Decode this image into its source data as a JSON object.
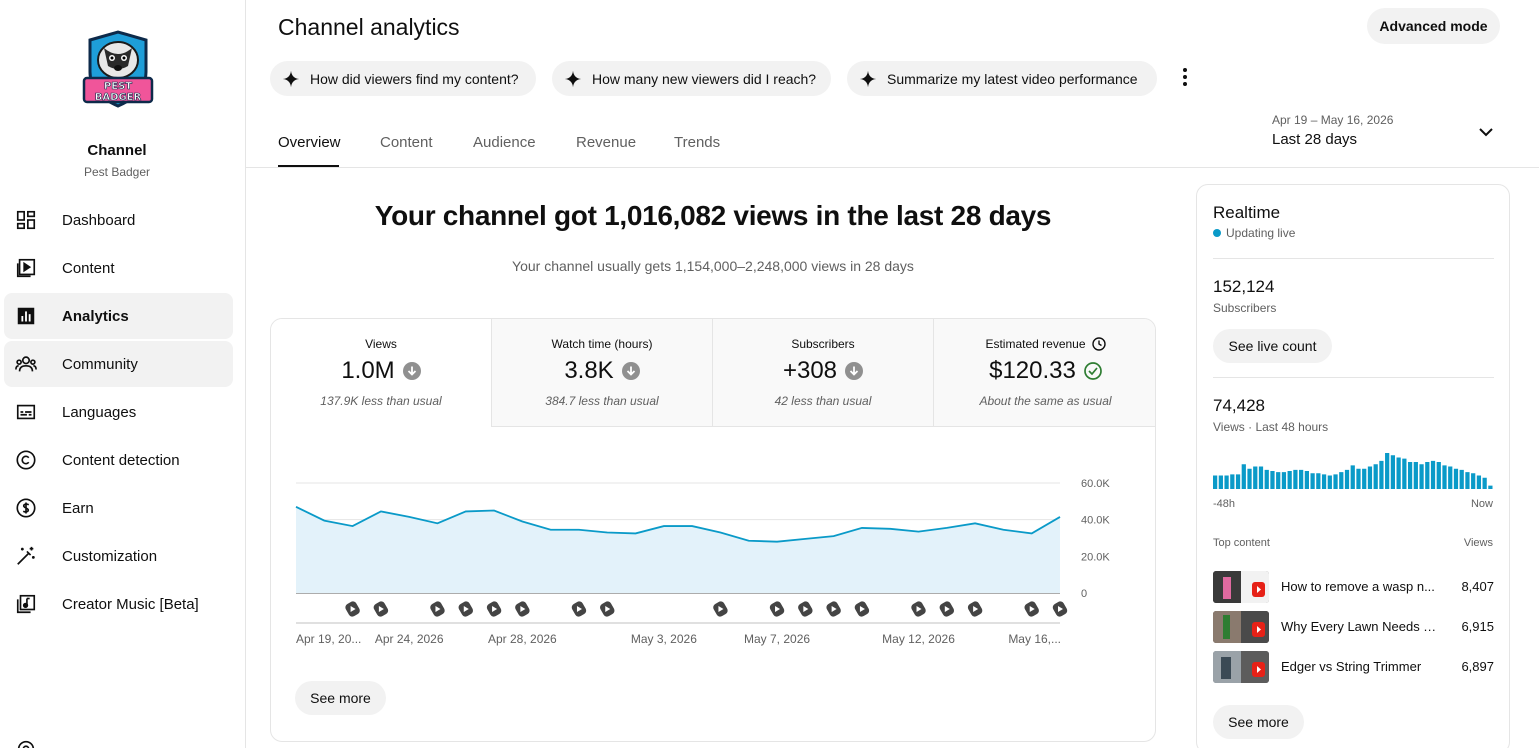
{
  "sidebar": {
    "channel_title": "Channel",
    "channel_name": "Pest Badger",
    "logo_text": "PEST BADGER",
    "items": [
      {
        "label": "Dashboard",
        "icon": "dashboard-icon"
      },
      {
        "label": "Content",
        "icon": "content-icon"
      },
      {
        "label": "Analytics",
        "icon": "analytics-icon"
      },
      {
        "label": "Community",
        "icon": "community-icon"
      },
      {
        "label": "Languages",
        "icon": "languages-icon"
      },
      {
        "label": "Content detection",
        "icon": "copyright-icon"
      },
      {
        "label": "Earn",
        "icon": "earn-icon"
      },
      {
        "label": "Customization",
        "icon": "customization-icon"
      },
      {
        "label": "Creator Music [Beta]",
        "icon": "music-icon"
      }
    ],
    "active_item": "Analytics"
  },
  "header": {
    "title": "Channel analytics",
    "advanced_mode_label": "Advanced mode",
    "chips": [
      "How did viewers find my content?",
      "How many new viewers did I reach?",
      "Summarize my latest video performance"
    ],
    "tabs": [
      "Overview",
      "Content",
      "Audience",
      "Revenue",
      "Trends"
    ],
    "active_tab": "Overview",
    "date_range": {
      "dates": "Apr 19 – May 16, 2026",
      "label": "Last 28 days"
    }
  },
  "overview": {
    "headline": "Your channel got 1,016,082 views in the last 28 days",
    "subline": "Your channel usually gets 1,154,000–2,248,000 views in 28 days",
    "metrics": [
      {
        "label": "Views",
        "value": "1.0M",
        "note": "137.9K less than usual",
        "trend": "down"
      },
      {
        "label": "Watch time (hours)",
        "value": "3.8K",
        "note": "384.7 less than usual",
        "trend": "down"
      },
      {
        "label": "Subscribers",
        "value": "+308",
        "note": "42 less than usual",
        "trend": "down"
      },
      {
        "label": "Estimated revenue",
        "value": "$120.33",
        "note": "About the same as usual",
        "trend": "same"
      }
    ],
    "see_more_label": "See more"
  },
  "chart_data": {
    "type": "area",
    "series": [
      {
        "values": [
          47000,
          39500,
          36500,
          44500,
          41500,
          38000,
          44500,
          45000,
          39000,
          34500,
          34500,
          33000,
          32500,
          36500,
          36500,
          33000,
          28500,
          28000,
          29500,
          31000,
          35500,
          35000,
          33500,
          35500,
          38000,
          34500,
          32500,
          41500
        ]
      }
    ],
    "x_tick_labels": [
      "Apr 19, 20...",
      "Apr 24, 2026",
      "Apr 28, 2026",
      "May 3, 2026",
      "May 7, 2026",
      "May 12, 2026",
      "May 16,..."
    ],
    "y_tick_labels": [
      "60.0K",
      "40.0K",
      "20.0K",
      "0"
    ],
    "ylim": [
      0,
      60000
    ],
    "grid": true,
    "color": "#0a9ac8",
    "fill_color": "#e3f2fa",
    "upload_marker_days": [
      2,
      3,
      5,
      6,
      7,
      8,
      10,
      11,
      15,
      17,
      18,
      19,
      20,
      22,
      23,
      24,
      26,
      27
    ]
  },
  "realtime": {
    "title": "Realtime",
    "status": "Updating live",
    "subscribers_value": "152,124",
    "subscribers_label": "Subscribers",
    "see_live_label": "See live count",
    "views_value": "74,428",
    "views_label": "Views · Last 48 hours",
    "axis_left": "-48h",
    "axis_right": "Now",
    "hourly_views": [
      12,
      12,
      12,
      13,
      13,
      22,
      18,
      20,
      20,
      17,
      16,
      15,
      15,
      16,
      17,
      17,
      16,
      14,
      14,
      13,
      12,
      13,
      15,
      17,
      21,
      18,
      18,
      20,
      22,
      25,
      32,
      30,
      28,
      27,
      24,
      24,
      22,
      24,
      25,
      24,
      21,
      20,
      18,
      17,
      15,
      14,
      12,
      10,
      3
    ],
    "top_content_label": "Top content",
    "views_column_label": "Views",
    "top_content": [
      {
        "title": "How to remove a wasp n...",
        "views": "8,407"
      },
      {
        "title": "Why Every Lawn Needs T...",
        "views": "6,915"
      },
      {
        "title": "Edger vs String Trimmer",
        "views": "6,897"
      }
    ],
    "see_more_label": "See more"
  },
  "colors": {
    "accent": "#0a9ac8",
    "chip_bg": "#f2f2f2",
    "text_secondary": "#606060",
    "success": "#2e7d32"
  }
}
